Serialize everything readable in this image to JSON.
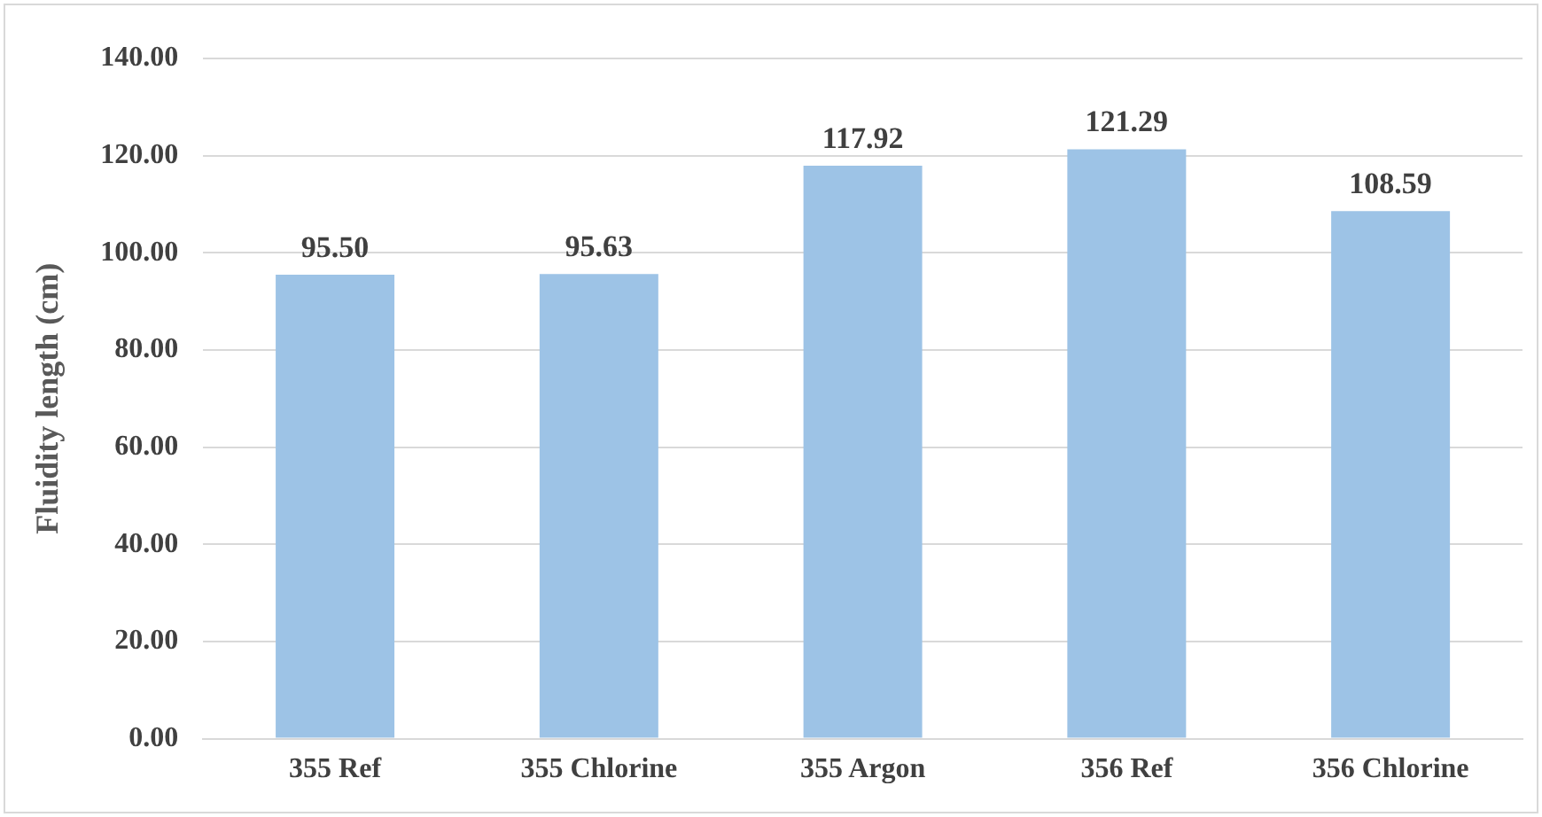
{
  "chart_data": {
    "type": "bar",
    "ylabel": "Fluidity length (cm)",
    "categories": [
      "355 Ref",
      "355 Chlorine",
      "355 Argon",
      "356 Ref",
      "356 Chlorine"
    ],
    "values": [
      95.5,
      95.63,
      117.92,
      121.29,
      108.59
    ],
    "color": "#9dc3e6",
    "ylim": [
      0,
      140
    ],
    "yticks": [
      {
        "value": 0,
        "label": "0.00"
      },
      {
        "value": 20,
        "label": "20.00"
      },
      {
        "value": 40,
        "label": "40.00"
      },
      {
        "value": 60,
        "label": "60.00"
      },
      {
        "value": 80,
        "label": "80.00"
      },
      {
        "value": 100,
        "label": "100.00"
      },
      {
        "value": 120,
        "label": "120.00"
      },
      {
        "value": 140,
        "label": "140.00"
      }
    ],
    "grid": "y",
    "legend": false,
    "value_labels": [
      "95.50",
      "95.63",
      "117.92",
      "121.29",
      "108.59"
    ]
  }
}
